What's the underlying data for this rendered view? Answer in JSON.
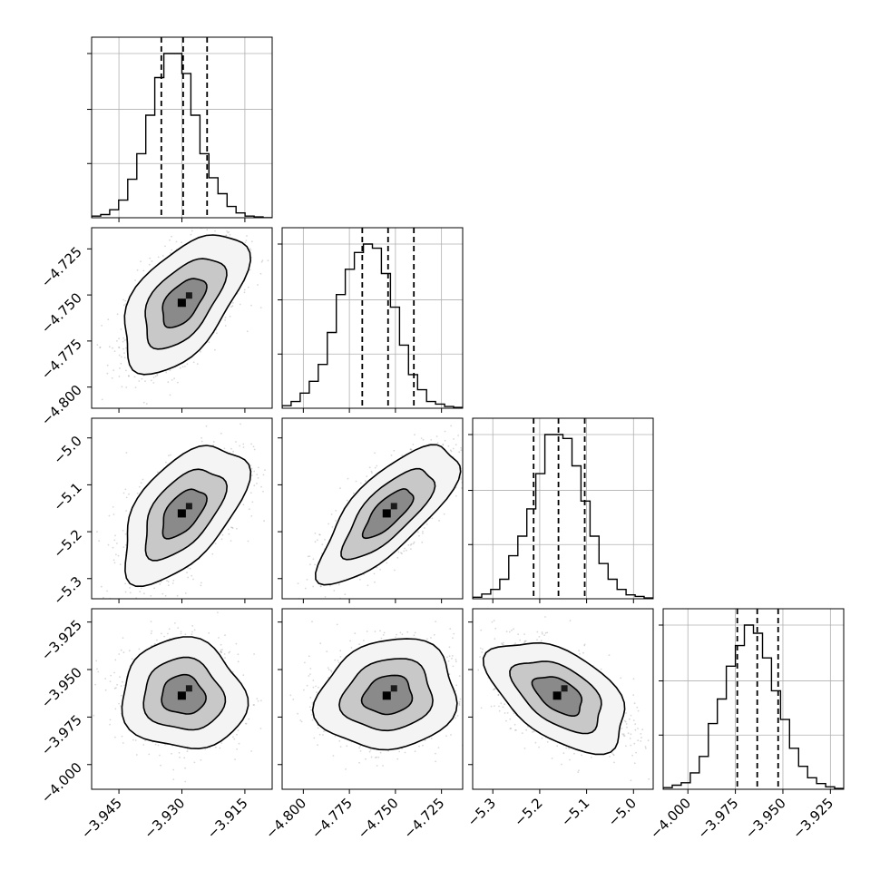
{
  "chart_data": {
    "type": "corner",
    "parameters": [
      {
        "ticks": [
          -3.945,
          -3.93,
          -3.915
        ],
        "tick_labels": [
          "−3.945",
          "−3.930",
          "−3.915"
        ],
        "range": [
          -3.9515,
          -3.9085
        ],
        "quantiles": [
          -3.9349,
          -3.9297,
          -3.924
        ]
      },
      {
        "ticks": [
          -4.8,
          -4.775,
          -4.75,
          -4.725
        ],
        "tick_labels": [
          "−4.800",
          "−4.775",
          "−4.750",
          "−4.725"
        ],
        "range": [
          -4.8115,
          -4.7135
        ],
        "quantiles": [
          -4.768,
          -4.754,
          -4.74
        ]
      },
      {
        "ticks": [
          -5.3,
          -5.2,
          -5.1,
          -5.0
        ],
        "tick_labels": [
          "−5.3",
          "−5.2",
          "−5.1",
          "−5.0"
        ],
        "range": [
          -5.343,
          -4.958
        ],
        "quantiles": [
          -5.213,
          -5.16,
          -5.104
        ]
      },
      {
        "ticks": [
          -4.0,
          -3.975,
          -3.95,
          -3.925
        ],
        "tick_labels": [
          "−4.000",
          "−3.975",
          "−3.950",
          "−3.925"
        ],
        "range": [
          -4.013,
          -3.918
        ],
        "quantiles": [
          -3.974,
          -3.9635,
          -3.9525
        ]
      }
    ],
    "histograms": [
      {
        "edges_range": [
          -3.9515,
          -3.9085
        ],
        "counts": [
          2,
          4,
          10,
          22,
          48,
          80,
          128,
          175,
          205,
          205,
          180,
          128,
          80,
          50,
          30,
          14,
          6,
          2,
          1,
          0
        ]
      },
      {
        "edges_range": [
          -4.8115,
          -4.7135
        ],
        "counts": [
          3,
          8,
          18,
          32,
          52,
          90,
          135,
          165,
          185,
          195,
          190,
          160,
          120,
          75,
          40,
          22,
          8,
          5,
          2,
          1
        ]
      },
      {
        "edges_range": [
          -5.343,
          -4.958
        ],
        "counts": [
          2,
          6,
          12,
          25,
          55,
          80,
          115,
          160,
          210,
          210,
          205,
          170,
          125,
          80,
          45,
          25,
          12,
          5,
          3,
          1
        ]
      },
      {
        "edges_range": [
          -4.013,
          -3.918
        ],
        "counts": [
          2,
          5,
          8,
          20,
          40,
          80,
          110,
          150,
          175,
          200,
          190,
          160,
          120,
          85,
          50,
          28,
          14,
          7,
          3,
          1
        ]
      }
    ],
    "levels": [
      0.393,
      0.865,
      0.989
    ],
    "correlations": [
      {
        "row": 1,
        "col": 0,
        "rho": 0.55
      },
      {
        "row": 2,
        "col": 0,
        "rho": 0.55
      },
      {
        "row": 2,
        "col": 1,
        "rho": 0.75
      },
      {
        "row": 3,
        "col": 0,
        "rho": -0.05
      },
      {
        "row": 3,
        "col": 1,
        "rho": 0.12
      },
      {
        "row": 3,
        "col": 2,
        "rho": -0.5
      }
    ]
  }
}
